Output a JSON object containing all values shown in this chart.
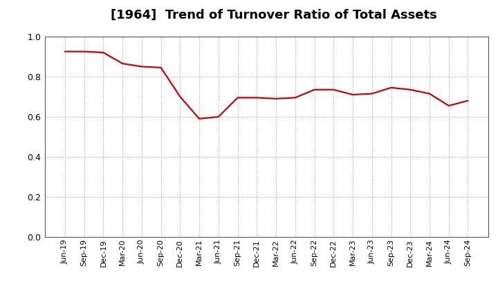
{
  "title": "[1964]  Trend of Turnover Ratio of Total Assets",
  "x_labels": [
    "Jun-19",
    "Sep-19",
    "Dec-19",
    "Mar-20",
    "Jun-20",
    "Sep-20",
    "Dec-20",
    "Mar-21",
    "Jun-21",
    "Sep-21",
    "Dec-21",
    "Mar-22",
    "Jun-22",
    "Sep-22",
    "Dec-22",
    "Mar-23",
    "Jun-23",
    "Sep-23",
    "Dec-23",
    "Mar-24",
    "Jun-24",
    "Sep-24"
  ],
  "y_values": [
    0.925,
    0.925,
    0.92,
    0.865,
    0.85,
    0.845,
    0.7,
    0.59,
    0.6,
    0.695,
    0.695,
    0.69,
    0.695,
    0.735,
    0.735,
    0.71,
    0.715,
    0.745,
    0.735,
    0.715,
    0.655,
    0.68
  ],
  "line_color": "#cc0000",
  "background_color": "#ffffff",
  "grid_color": "#999999",
  "title_fontsize": 13,
  "title_fontweight": "bold",
  "ylim": [
    0.0,
    1.0
  ],
  "yticks": [
    0.0,
    0.2,
    0.4,
    0.6,
    0.8,
    1.0
  ],
  "tick_fontsize": 9,
  "xtick_fontsize": 8
}
